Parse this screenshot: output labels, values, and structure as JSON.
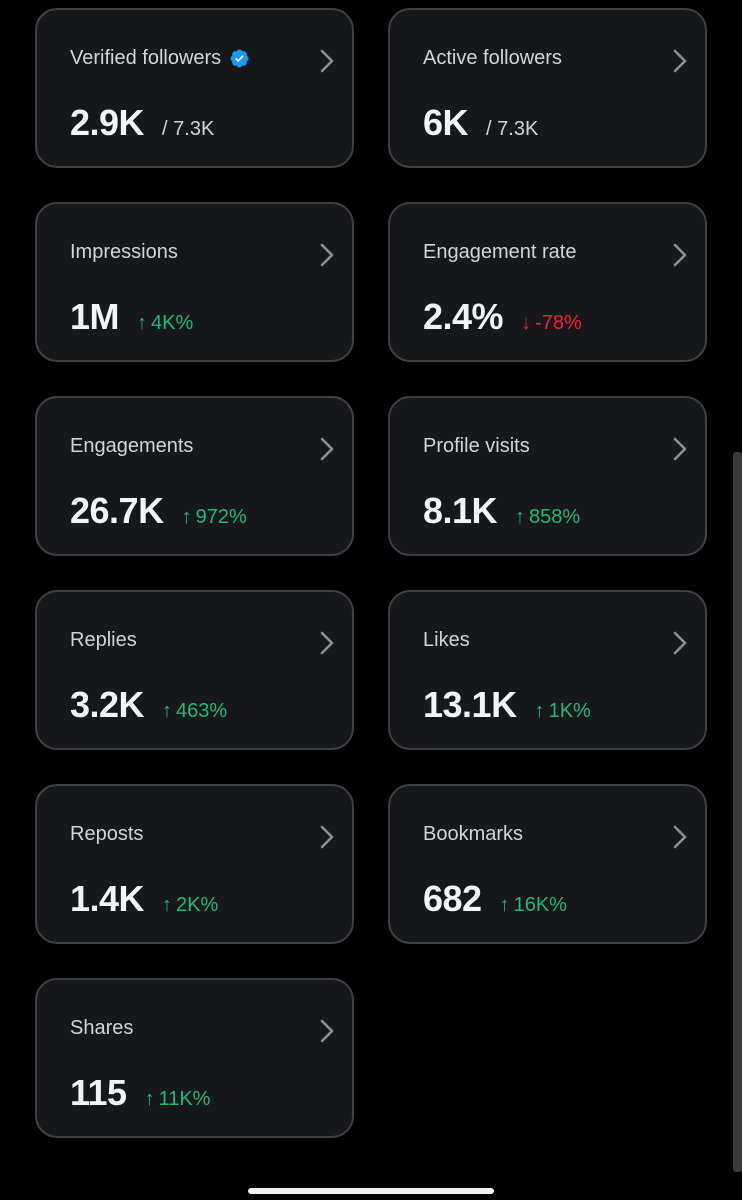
{
  "colors": {
    "background": "#000000",
    "card_background": "#16181c",
    "card_border": "#3e4144",
    "positive": "#21b873",
    "negative": "#f4212e",
    "verified": "#1d9bf0"
  },
  "cards": [
    {
      "title": "Verified followers",
      "value": "2.9K",
      "sub": "/ 7.3K",
      "icon": "verified-badge-icon"
    },
    {
      "title": "Active followers",
      "value": "6K",
      "sub": "/ 7.3K"
    },
    {
      "title": "Impressions",
      "value": "1M",
      "delta": {
        "dir": "up",
        "arrow": "↑",
        "text": "4K%"
      }
    },
    {
      "title": "Engagement rate",
      "value": "2.4%",
      "delta": {
        "dir": "down",
        "arrow": "↓",
        "text": "-78%"
      }
    },
    {
      "title": "Engagements",
      "value": "26.7K",
      "delta": {
        "dir": "up",
        "arrow": "↑",
        "text": "972%"
      }
    },
    {
      "title": "Profile visits",
      "value": "8.1K",
      "delta": {
        "dir": "up",
        "arrow": "↑",
        "text": "858%"
      }
    },
    {
      "title": "Replies",
      "value": "3.2K",
      "delta": {
        "dir": "up",
        "arrow": "↑",
        "text": "463%"
      }
    },
    {
      "title": "Likes",
      "value": "13.1K",
      "delta": {
        "dir": "up",
        "arrow": "↑",
        "text": "1K%"
      }
    },
    {
      "title": "Reposts",
      "value": "1.4K",
      "delta": {
        "dir": "up",
        "arrow": "↑",
        "text": "2K%"
      }
    },
    {
      "title": "Bookmarks",
      "value": "682",
      "delta": {
        "dir": "up",
        "arrow": "↑",
        "text": "16K%"
      }
    },
    {
      "title": "Shares",
      "value": "115",
      "delta": {
        "dir": "up",
        "arrow": "↑",
        "text": "11K%"
      }
    }
  ]
}
